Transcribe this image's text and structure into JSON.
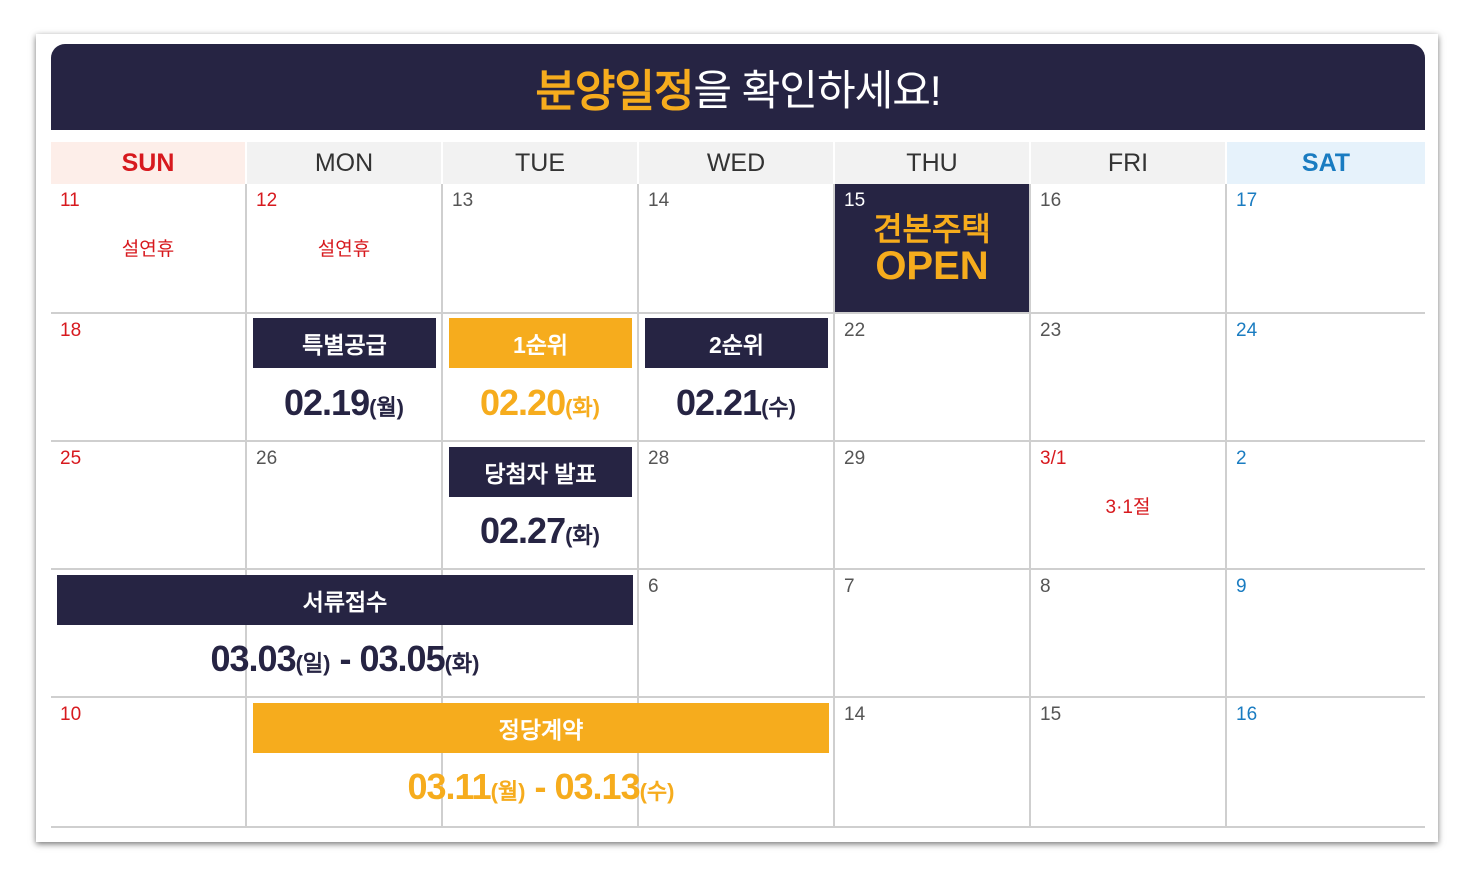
{
  "banner": {
    "highlight": "분양일정",
    "rest": "을 확인하세요!"
  },
  "weekdays": [
    "SUN",
    "MON",
    "TUE",
    "WED",
    "THU",
    "FRI",
    "SAT"
  ],
  "rows": [
    [
      "11",
      "12",
      "13",
      "14",
      "15",
      "16",
      "17"
    ],
    [
      "18",
      "",
      "",
      "",
      "22",
      "23",
      "24"
    ],
    [
      "25",
      "26",
      "",
      "28",
      "29",
      "3/1",
      "2"
    ],
    [
      "",
      "",
      "",
      "6",
      "7",
      "8",
      "9"
    ],
    [
      "10",
      "",
      "",
      "",
      "14",
      "15",
      "16"
    ]
  ],
  "holidays": {
    "sun_w1": "설연휴",
    "mon_w1": "설연휴",
    "fri_w3": "3·1절"
  },
  "model_house": {
    "line1": "견본주택",
    "line2": "OPEN"
  },
  "events": {
    "special": {
      "label": "특별공급",
      "date": "02.19",
      "day": "(월)"
    },
    "first": {
      "label": "1순위",
      "date": "02.20",
      "day": "(화)"
    },
    "second": {
      "label": "2순위",
      "date": "02.21",
      "day": "(수)"
    },
    "winner": {
      "label": "당첨자 발표",
      "date": "02.27",
      "day": "(화)"
    },
    "docs": {
      "label": "서류접수",
      "start": "03.03",
      "start_day": "(일)",
      "sep": " - ",
      "end": "03.05",
      "end_day": "(화)"
    },
    "contract": {
      "label": "정당계약",
      "start": "03.11",
      "start_day": "(월)",
      "sep": " - ",
      "end": "03.13",
      "end_day": "(수)"
    }
  },
  "colors": {
    "navy": "#262443",
    "gold": "#f6ac1d",
    "red": "#d7191e",
    "blue": "#1a7cc1"
  }
}
